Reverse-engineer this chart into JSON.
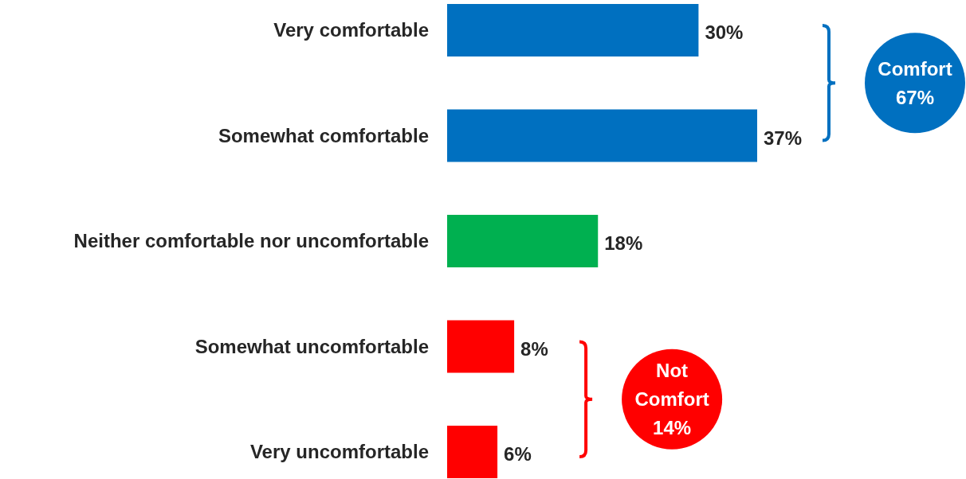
{
  "chart_data": {
    "type": "bar",
    "orientation": "horizontal",
    "categories": [
      "Very comfortable",
      "Somewhat comfortable",
      "Neither comfortable nor uncomfortable",
      "Somewhat uncomfortable",
      "Very uncomfortable"
    ],
    "values": [
      30,
      37,
      18,
      8,
      6
    ],
    "colors": [
      "#0070c0",
      "#0070c0",
      "#00b050",
      "#ff0000",
      "#ff0000"
    ],
    "value_labels": [
      "30%",
      "37%",
      "18%",
      "8%",
      "6%"
    ],
    "annotations": [
      "Comfort 67%",
      "Not Comfort 14%"
    ]
  }
}
